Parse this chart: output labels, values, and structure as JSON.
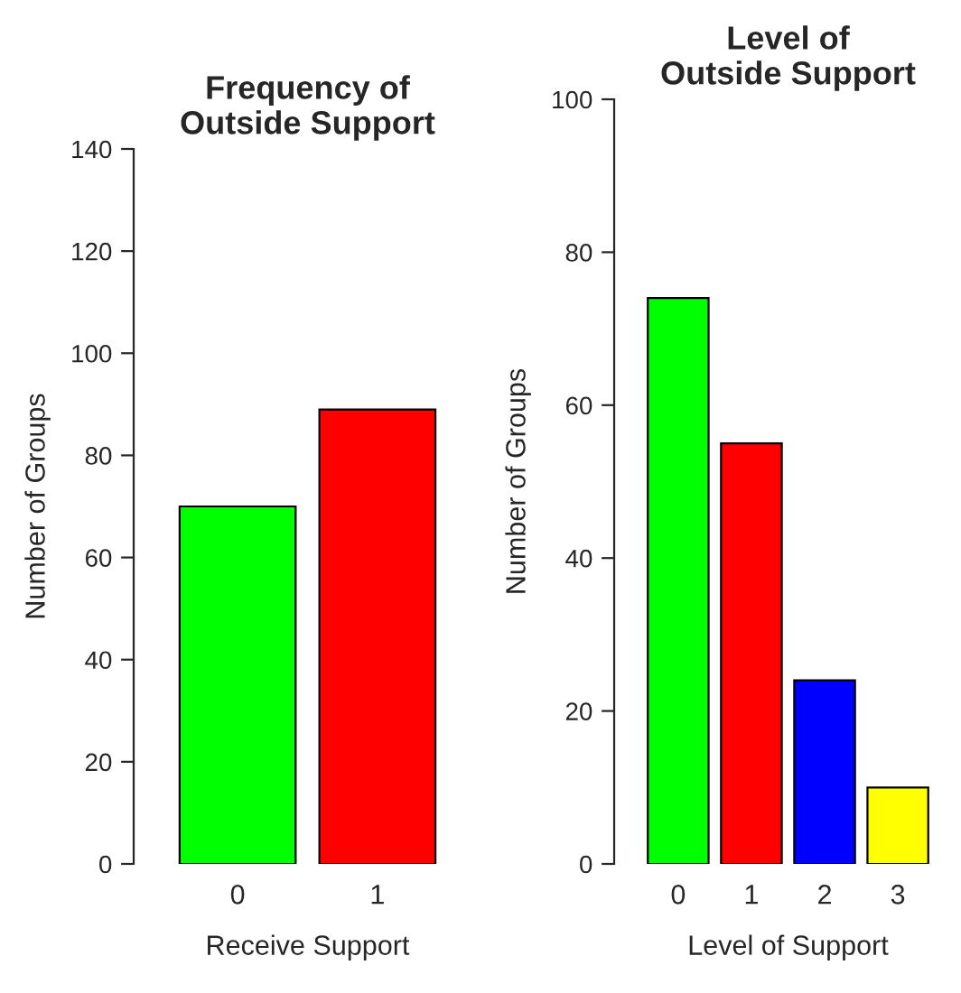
{
  "chart_data": [
    {
      "type": "bar",
      "title": "Frequency of\nOutside Support",
      "xlabel": "Receive Support",
      "ylabel": "Number of Groups",
      "categories": [
        "0",
        "1"
      ],
      "values": [
        70,
        89
      ],
      "colors": [
        "#00ff00",
        "#ff0000"
      ],
      "ylim": [
        0,
        140
      ],
      "yticks": [
        0,
        20,
        40,
        60,
        80,
        100,
        120,
        140
      ],
      "grid": false,
      "legend": false
    },
    {
      "type": "bar",
      "title": "Level of\nOutside Support",
      "xlabel": "Level of Support",
      "ylabel": "Number of Groups",
      "categories": [
        "0",
        "1",
        "2",
        "3"
      ],
      "values": [
        74,
        55,
        24,
        10
      ],
      "colors": [
        "#00ff00",
        "#ff0000",
        "#0000ff",
        "#ffff00"
      ],
      "ylim": [
        0,
        100
      ],
      "yticks": [
        0,
        20,
        40,
        60,
        80,
        100
      ],
      "grid": false,
      "legend": false
    }
  ]
}
